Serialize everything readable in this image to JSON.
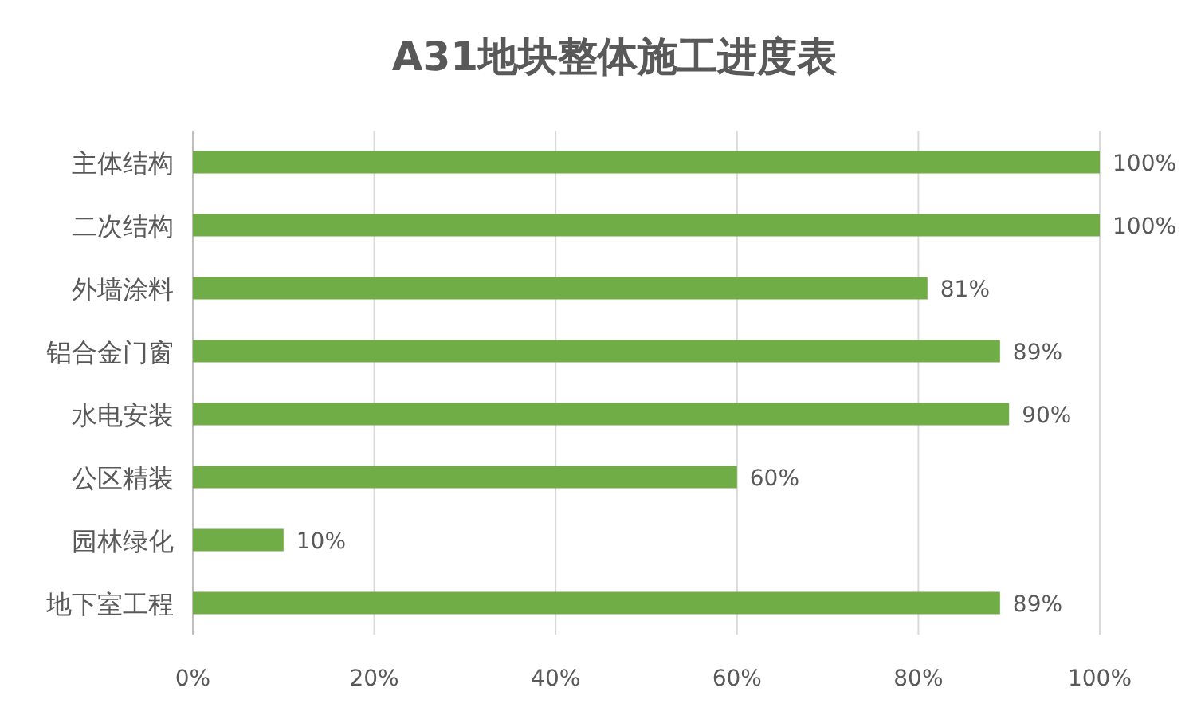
{
  "chart_data": {
    "type": "bar",
    "orientation": "horizontal",
    "title": "A31地块整体施工进度表",
    "categories": [
      "主体结构",
      "二次结构",
      "外墙涂料",
      "铝合金门窗",
      "水电安装",
      "公区精装",
      "园林绿化",
      "地下室工程"
    ],
    "values": [
      100,
      100,
      81,
      89,
      90,
      60,
      10,
      89
    ],
    "value_labels": [
      "100%",
      "100%",
      "81%",
      "89%",
      "90%",
      "60%",
      "10%",
      "89%"
    ],
    "color": "#70ad47",
    "xlim": [
      0,
      100
    ],
    "xticks": [
      {
        "value": 0,
        "label": "0%"
      },
      {
        "value": 20,
        "label": "20%"
      },
      {
        "value": 40,
        "label": "40%"
      },
      {
        "value": 60,
        "label": "60%"
      },
      {
        "value": 80,
        "label": "80%"
      },
      {
        "value": 100,
        "label": "100%"
      }
    ],
    "grid": "x"
  }
}
